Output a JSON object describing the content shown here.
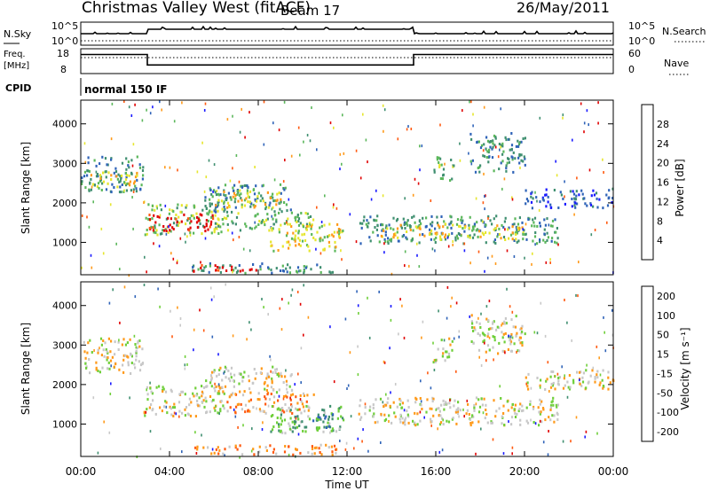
{
  "header": {
    "title": "Christmas Valley West (fitACF)",
    "beam": "Beam 17",
    "date": "26/May/2011"
  },
  "top_panels": {
    "nsky_label": "N.Sky",
    "nsearch_label": "N.Search",
    "nsky_ticks": [
      "10^5",
      "10^0"
    ],
    "nsearch_ticks": [
      "10^5",
      "10^0"
    ],
    "freq_label_1": "Freq.",
    "freq_label_2": "[MHz]",
    "freq_ticks": [
      "18",
      "8"
    ],
    "nave_label": "Nave",
    "nave_ticks": [
      "60",
      "0"
    ],
    "cpid_label": "CPID",
    "cpid_value": "normal 150 IF",
    "freq_series": [
      {
        "t": 0,
        "mhz": 16.0
      },
      {
        "t": 3.0,
        "mhz": 16.0
      },
      {
        "t": 3.0,
        "mhz": 10.5
      },
      {
        "t": 15.0,
        "mhz": 10.5
      },
      {
        "t": 15.0,
        "mhz": 16.0
      },
      {
        "t": 24,
        "mhz": 16.0
      }
    ]
  },
  "chart_data": [
    {
      "type": "heatmap",
      "ylabel": "Slant Range [km]",
      "xlabel": "Time UT",
      "xlim": [
        0,
        24
      ],
      "ylim": [
        180,
        4600
      ],
      "x_ticks": [
        "00:00",
        "04:00",
        "08:00",
        "12:00",
        "16:00",
        "20:00",
        "00:00"
      ],
      "x_tick_values": [
        0,
        4,
        8,
        12,
        16,
        20,
        24
      ],
      "y_ticks": [
        1000,
        2000,
        3000,
        4000
      ],
      "colorbar": {
        "label": "Power [dB]",
        "tick_labels": [
          "4",
          "8",
          "12",
          "16",
          "20",
          "24",
          "28"
        ],
        "colors": [
          "#1a1aff",
          "#2f63b8",
          "#3f8f70",
          "#5bb75b",
          "#e6e62e",
          "#ff9a1a",
          "#ff5a10",
          "#e00000"
        ]
      },
      "regions": [
        {
          "t0": 0.0,
          "t1": 2.8,
          "r0": 2300,
          "r1": 3200,
          "level": 2
        },
        {
          "t0": 0.3,
          "t1": 2.5,
          "r0": 2400,
          "r1": 2800,
          "level": 4
        },
        {
          "t0": 2.8,
          "t1": 6.5,
          "r0": 1200,
          "r1": 2000,
          "level": 3
        },
        {
          "t0": 3.0,
          "t1": 6.0,
          "r0": 1300,
          "r1": 1750,
          "level": 7
        },
        {
          "t0": 5.5,
          "t1": 9.5,
          "r0": 1800,
          "r1": 2500,
          "level": 2
        },
        {
          "t0": 6.0,
          "t1": 9.0,
          "r0": 1900,
          "r1": 2350,
          "level": 4
        },
        {
          "t0": 6.5,
          "t1": 10.5,
          "r0": 1300,
          "r1": 1800,
          "level": 3
        },
        {
          "t0": 8.5,
          "t1": 11.8,
          "r0": 800,
          "r1": 1500,
          "level": 4
        },
        {
          "t0": 5.0,
          "t1": 11.5,
          "r0": 250,
          "r1": 500,
          "level": 2
        },
        {
          "t0": 5.0,
          "t1": 8.0,
          "r0": 280,
          "r1": 450,
          "level": 7
        },
        {
          "t0": 12.5,
          "t1": 21.5,
          "r0": 1000,
          "r1": 1700,
          "level": 2
        },
        {
          "t0": 13.5,
          "t1": 20.0,
          "r0": 1100,
          "r1": 1500,
          "level": 4
        },
        {
          "t0": 15.8,
          "t1": 16.8,
          "r0": 2600,
          "r1": 3200,
          "level": 3
        },
        {
          "t0": 17.5,
          "t1": 20.0,
          "r0": 2800,
          "r1": 3800,
          "level": 2
        },
        {
          "t0": 20.0,
          "t1": 24.0,
          "r0": 1900,
          "r1": 2400,
          "level": 1
        }
      ]
    },
    {
      "type": "heatmap",
      "ylabel": "Slant Range [km]",
      "xlabel": "Time UT",
      "xlim": [
        0,
        24
      ],
      "ylim": [
        180,
        4600
      ],
      "x_ticks": [
        "00:00",
        "04:00",
        "08:00",
        "12:00",
        "16:00",
        "20:00",
        "00:00"
      ],
      "x_tick_values": [
        0,
        4,
        8,
        12,
        16,
        20,
        24
      ],
      "y_ticks": [
        1000,
        2000,
        3000,
        4000
      ],
      "colorbar": {
        "label": "Velocity [m s⁻¹]",
        "tick_labels": [
          "200",
          "100",
          "50",
          "15",
          "-15",
          "-50",
          "-100",
          "-200"
        ],
        "colors": [
          "#1a1aff",
          "#2f63b8",
          "#3f8f70",
          "#6fcf3a",
          "#c8c8c8",
          "#ff9a1a",
          "#ff5a10",
          "#e00000"
        ]
      },
      "regions": [
        {
          "t0": 0.0,
          "t1": 2.8,
          "r0": 2300,
          "r1": 3200,
          "level": 4
        },
        {
          "t0": 2.8,
          "t1": 6.5,
          "r0": 1200,
          "r1": 2000,
          "level": 4
        },
        {
          "t0": 5.5,
          "t1": 9.5,
          "r0": 1800,
          "r1": 2500,
          "level": 4
        },
        {
          "t0": 6.5,
          "t1": 10.5,
          "r0": 1300,
          "r1": 1800,
          "level": 5
        },
        {
          "t0": 8.5,
          "t1": 11.8,
          "r0": 800,
          "r1": 1500,
          "level": 3
        },
        {
          "t0": 9.5,
          "t1": 11.5,
          "r0": 900,
          "r1": 1300,
          "level": 2
        },
        {
          "t0": 5.0,
          "t1": 11.5,
          "r0": 250,
          "r1": 500,
          "level": 5
        },
        {
          "t0": 12.5,
          "t1": 21.5,
          "r0": 1000,
          "r1": 1700,
          "level": 4
        },
        {
          "t0": 15.8,
          "t1": 16.8,
          "r0": 2600,
          "r1": 3200,
          "level": 4
        },
        {
          "t0": 17.5,
          "t1": 20.0,
          "r0": 2800,
          "r1": 3800,
          "level": 4
        },
        {
          "t0": 20.0,
          "t1": 24.0,
          "r0": 1900,
          "r1": 2400,
          "level": 4
        }
      ]
    }
  ]
}
